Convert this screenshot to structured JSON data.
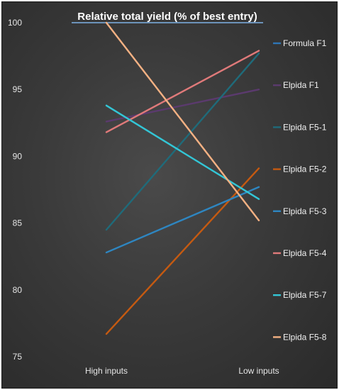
{
  "chart_data": {
    "type": "line",
    "title": "Relative total yield (% of best entry)",
    "xlabel": "",
    "ylabel": "",
    "categories": [
      "High inputs",
      "Low inputs"
    ],
    "ylim": [
      75,
      100
    ],
    "yticks": [
      75,
      80,
      85,
      90,
      95,
      100
    ],
    "grid": false,
    "legend_position": "right",
    "series": [
      {
        "name": "Formula F1",
        "values": [
          null,
          null
        ],
        "color": "#2e75b6"
      },
      {
        "name": "Elpida F1",
        "values": [
          92.6,
          95.0
        ],
        "color": "#5b3a6e"
      },
      {
        "name": "Elpida F5-1",
        "values": [
          84.5,
          97.7
        ],
        "color": "#1f6b7a"
      },
      {
        "name": "Elpida F5-2",
        "values": [
          76.7,
          89.1
        ],
        "color": "#c55a11"
      },
      {
        "name": "Elpida F5-3",
        "values": [
          82.8,
          87.7
        ],
        "color": "#2e86c1"
      },
      {
        "name": "Elpida F5-4",
        "values": [
          91.8,
          97.9
        ],
        "color": "#e07a7a"
      },
      {
        "name": "Elpida F5-7",
        "values": [
          93.8,
          86.8
        ],
        "color": "#33c6d6"
      },
      {
        "name": "Elpida F5-8",
        "values": [
          100.0,
          85.2
        ],
        "color": "#f4b183"
      }
    ]
  }
}
